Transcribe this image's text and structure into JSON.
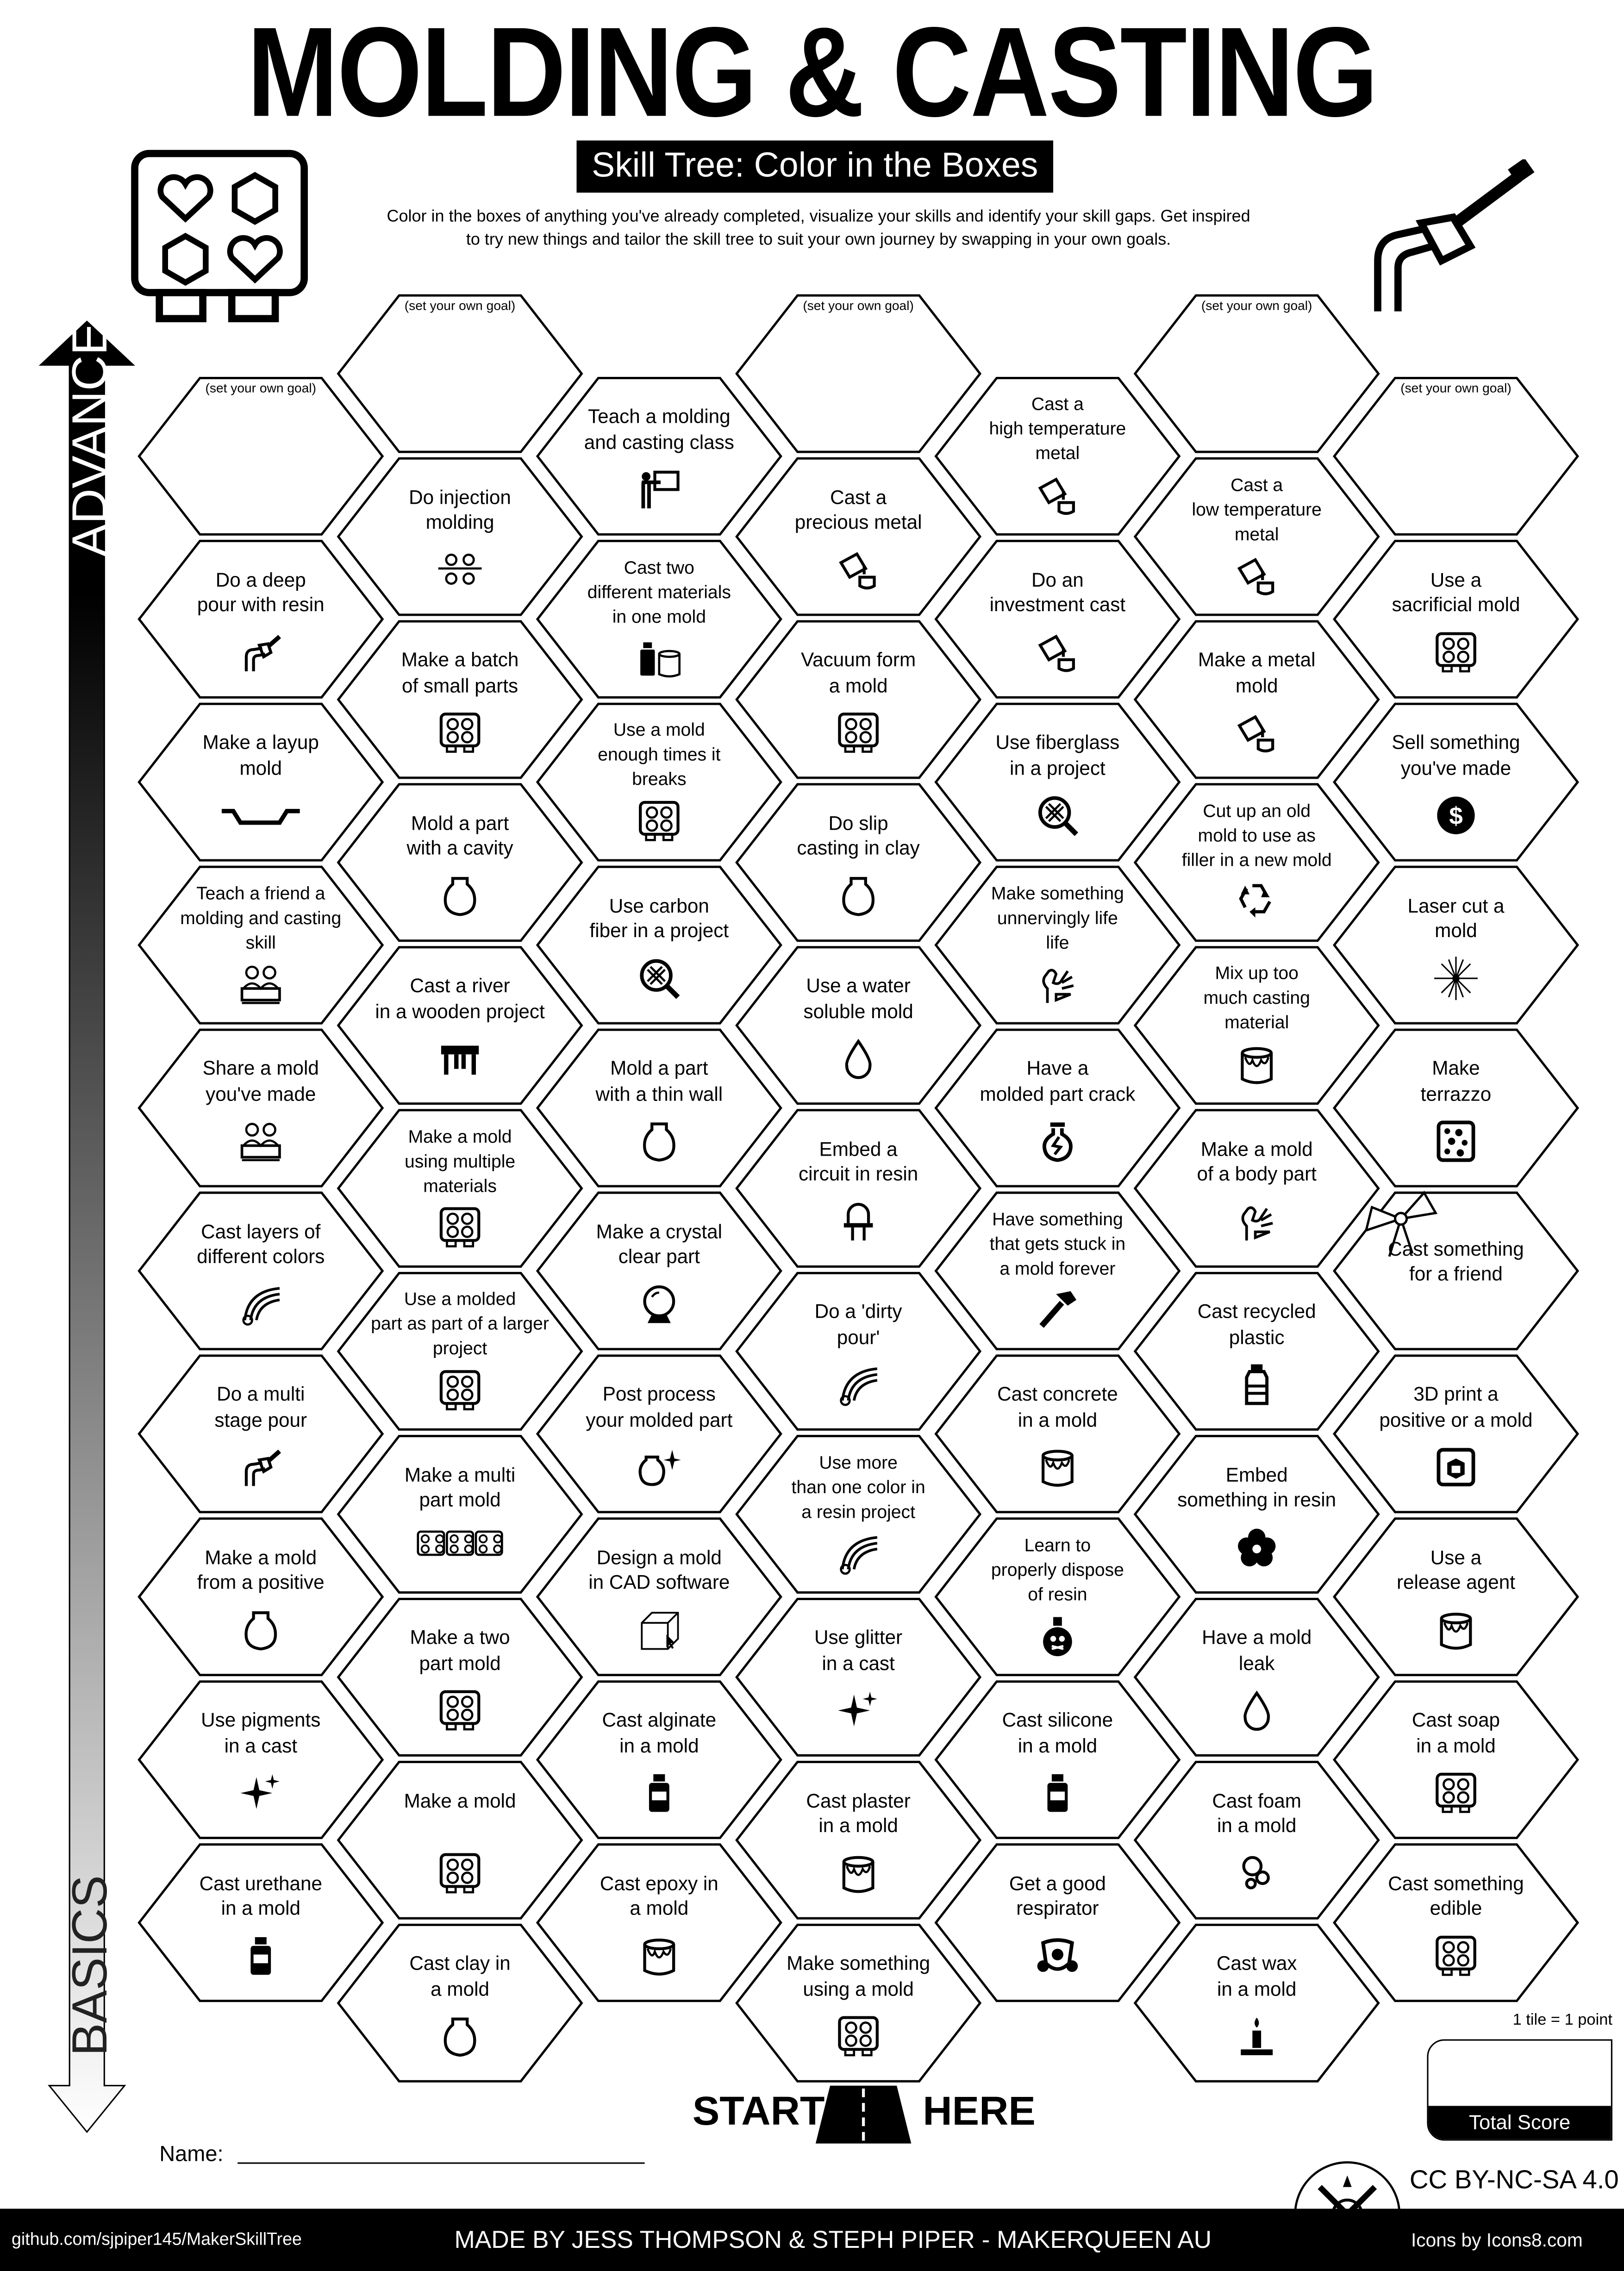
{
  "header": {
    "title": "MOLDING & CASTING",
    "subtitle": "Skill Tree: Color in the Boxes",
    "description": "Color in the boxes of anything you've already completed, visualize your skills and identify your skill gaps.  Get inspired\nto try new things and tailor the skill tree to suit your own journey by swapping in your own goals.",
    "left_icon": "mold-tray-icon",
    "right_icon": "resin-hose-icon"
  },
  "axis": {
    "top_label": "ADVANCED",
    "bottom_label": "BASICS"
  },
  "goal_label": "(set your own goal)",
  "columns": [
    [
      {
        "goal": true
      },
      {
        "text": "Do a deep\npour with resin",
        "icon": "hose"
      },
      {
        "text": "Make a layup\nmold",
        "icon": "layup"
      },
      {
        "text": "Teach a friend a\nmolding and casting\nskill",
        "icon": "workers"
      },
      {
        "text": "Share a mold\nyou've made",
        "icon": "workers"
      },
      {
        "text": "Cast layers of\ndifferent colors",
        "icon": "rainbow"
      },
      {
        "text": "Do a multi\nstage pour",
        "icon": "hose"
      },
      {
        "text": "Make a mold\nfrom a positive",
        "icon": "vase"
      },
      {
        "text": "Use pigments\nin a cast",
        "icon": "sparkles"
      },
      {
        "text": "Cast urethane\nin a mold",
        "icon": "bottle"
      }
    ],
    [
      {
        "goal": true
      },
      {
        "text": "Do injection\nmolding",
        "icon": "injection"
      },
      {
        "text": "Make a batch\nof small parts",
        "icon": "mold"
      },
      {
        "text": "Mold a part\nwith a cavity",
        "icon": "vase"
      },
      {
        "text": "Cast a river\nin a wooden project",
        "icon": "table"
      },
      {
        "text": "Make a mold\nusing multiple\nmaterials",
        "icon": "mold"
      },
      {
        "text": "Use a molded\npart as part of a larger\nproject",
        "icon": "mold"
      },
      {
        "text": "Make a  multi\npart mold",
        "icon": "mold3"
      },
      {
        "text": "Make a two\npart mold",
        "icon": "mold"
      },
      {
        "text": "Make a mold",
        "icon": "mold"
      },
      {
        "text": "Cast clay in\na mold",
        "icon": "vase"
      }
    ],
    [
      {
        "text": "Teach a molding\nand casting class",
        "icon": "teacher"
      },
      {
        "text": "Cast two\ndifferent materials\nin one mold",
        "icon": "bottlebucket"
      },
      {
        "text": "Use a mold\nenough times it\nbreaks",
        "icon": "mold"
      },
      {
        "text": "Use carbon\nfiber in a project",
        "icon": "carbon"
      },
      {
        "text": "Mold a part\nwith a thin wall",
        "icon": "vase"
      },
      {
        "text": "Make a crystal\nclear part",
        "icon": "crystal"
      },
      {
        "text": "Post process\nyour molded part",
        "icon": "vasesparkle"
      },
      {
        "text": "Design a mold\nin CAD software",
        "icon": "cube"
      },
      {
        "text": "Cast alginate\nin a mold",
        "icon": "bottle"
      },
      {
        "text": "Cast epoxy in\na mold",
        "icon": "bucket"
      }
    ],
    [
      {
        "goal": true
      },
      {
        "text": "Cast a\nprecious metal",
        "icon": "pour"
      },
      {
        "text": "Vacuum form\na mold",
        "icon": "mold"
      },
      {
        "text": "Do slip\ncasting in clay",
        "icon": "vase"
      },
      {
        "text": "Use a water\nsoluble mold",
        "icon": "drop"
      },
      {
        "text": "Embed a\ncircuit in resin",
        "icon": "led"
      },
      {
        "text": "Do a 'dirty\npour'",
        "icon": "rainbow"
      },
      {
        "text": "Use more\nthan one color in\na resin project",
        "icon": "rainbow"
      },
      {
        "text": "Use glitter\nin a cast",
        "icon": "sparkles"
      },
      {
        "text": "Cast plaster\nin a mold",
        "icon": "bucket"
      },
      {
        "text": "Make something\nusing a mold",
        "icon": "mold"
      }
    ],
    [
      {
        "text": "Cast a\nhigh temperature\nmetal",
        "icon": "pour"
      },
      {
        "text": "Do an\ninvestment cast",
        "icon": "pour"
      },
      {
        "text": "Use fiberglass\nin a project",
        "icon": "carbon"
      },
      {
        "text": "Make something\nunnervingly life\nlife",
        "icon": "hand"
      },
      {
        "text": "Have a\nmolded part crack",
        "icon": "crack"
      },
      {
        "text": "Have something\nthat gets stuck in\na mold forever",
        "icon": "hammer"
      },
      {
        "text": "Cast concrete\nin a mold",
        "icon": "bucket"
      },
      {
        "text": "Learn to\nproperly dispose\nof resin",
        "icon": "poison"
      },
      {
        "text": "Cast silicone\nin a mold",
        "icon": "bottle"
      },
      {
        "text": "Get a good\nrespirator",
        "icon": "respirator"
      }
    ],
    [
      {
        "goal": true
      },
      {
        "text": "Cast a\nlow temperature\nmetal",
        "icon": "pour"
      },
      {
        "text": "Make a metal\nmold",
        "icon": "pour"
      },
      {
        "text": "Cut up an old\nmold to use as\nfiller in a new mold",
        "icon": "recycle"
      },
      {
        "text": "Mix up too\nmuch casting\nmaterial",
        "icon": "bucket"
      },
      {
        "text": "Make a mold\nof a body part",
        "icon": "hand"
      },
      {
        "text": "Cast recycled\nplastic",
        "icon": "plastic"
      },
      {
        "text": "Embed\nsomething in resin",
        "icon": "flower"
      },
      {
        "text": "Have a mold\nleak",
        "icon": "drop"
      },
      {
        "text": "Cast foam\nin a mold",
        "icon": "foam"
      },
      {
        "text": "Cast wax\nin a mold",
        "icon": "candle"
      }
    ],
    [
      {
        "goal": true
      },
      {
        "text": "Use a\nsacrificial mold",
        "icon": "mold"
      },
      {
        "text": "Sell something\nyou've made",
        "icon": "dollar"
      },
      {
        "text": "Laser cut a\nmold",
        "icon": "laser"
      },
      {
        "text": "Make\nterrazzo",
        "icon": "terrazzo"
      },
      {
        "text": "Cast something\nfor a friend",
        "icon": "none",
        "bow": true
      },
      {
        "text": "3D print a\npositive or a mold",
        "icon": "print3d"
      },
      {
        "text": "Use a\nrelease agent",
        "icon": "bucket"
      },
      {
        "text": "Cast soap\nin a mold",
        "icon": "mold"
      },
      {
        "text": "Cast something\nedible",
        "icon": "mold"
      }
    ]
  ],
  "start": {
    "left": "START",
    "right": "HERE"
  },
  "name_label": "Name:",
  "score": {
    "note": "1 tile = 1 point",
    "label": "Total Score"
  },
  "license": "CC BY-NC-SA 4.0",
  "footer": {
    "github": "github.com/sjpiper145/MakerSkillTree",
    "made_by": "MADE BY JESS THOMPSON & STEPH PIPER  -  MAKERQUEEN AU",
    "icons_credit": "Icons by Icons8.com"
  }
}
